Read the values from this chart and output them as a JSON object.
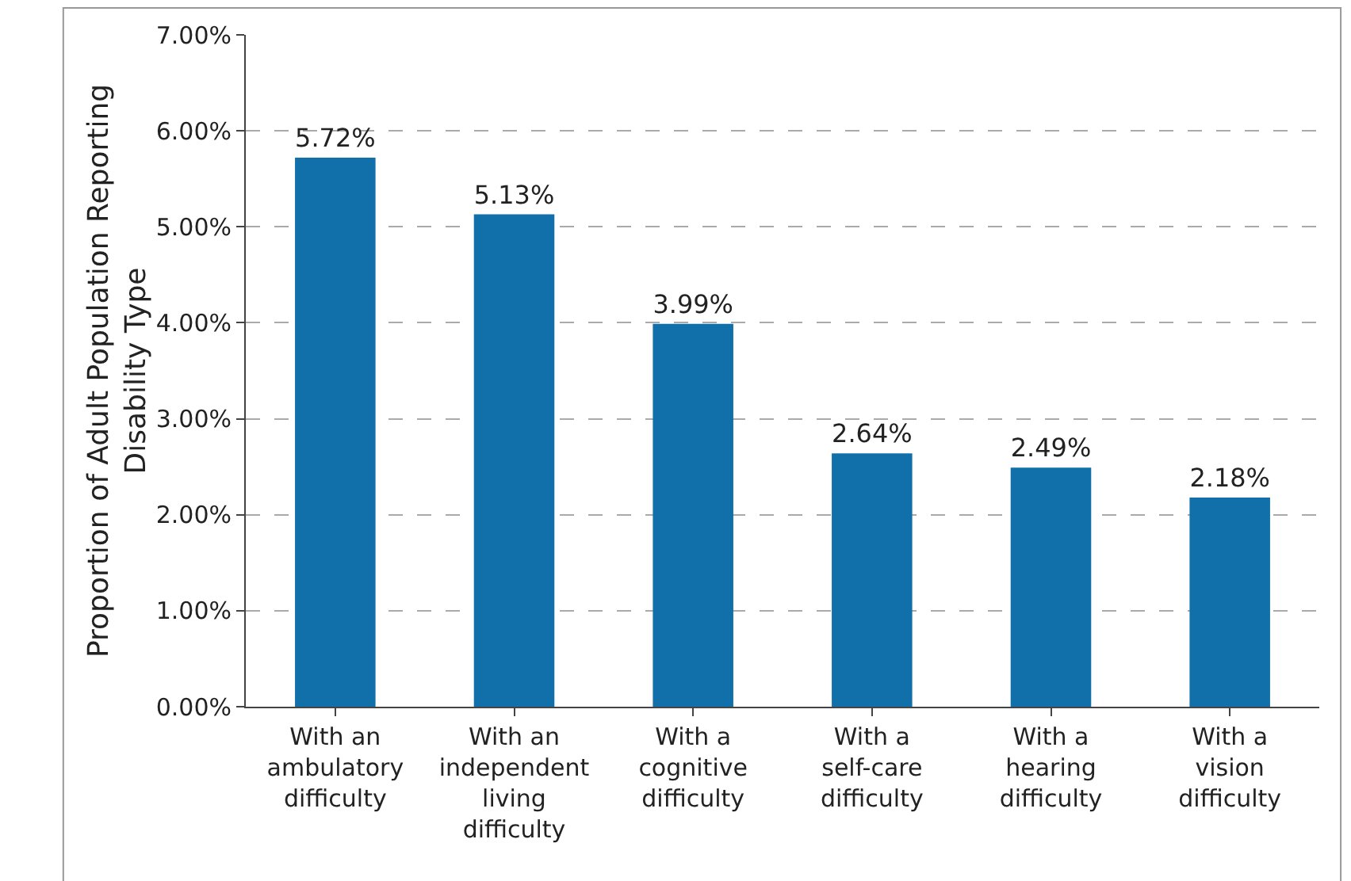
{
  "chart_data": {
    "type": "bar",
    "ylabel": "Proportion of Adult Population Reporting Disability Type",
    "categories": [
      "With an ambulatory difficulty",
      "With an independent living difficulty",
      "With a cognitive difficulty",
      "With a self-care difficulty",
      "With a hearing difficulty",
      "With a vision difficulty"
    ],
    "values": [
      5.72,
      5.13,
      3.99,
      2.64,
      2.49,
      2.18
    ],
    "value_labels": [
      "5.72%",
      "5.13%",
      "3.99%",
      "2.64%",
      "2.49%",
      "2.18%"
    ],
    "color": "#1170aa",
    "ylim": [
      0,
      7
    ],
    "yticks": [
      {
        "value": 0,
        "label": "0.00%"
      },
      {
        "value": 1,
        "label": "1.00%"
      },
      {
        "value": 2,
        "label": "2.00%"
      },
      {
        "value": 3,
        "label": "3.00%"
      },
      {
        "value": 4,
        "label": "4.00%"
      },
      {
        "value": 5,
        "label": "5.00%"
      },
      {
        "value": 6,
        "label": "6.00%"
      },
      {
        "value": 7,
        "label": "7.00%"
      }
    ],
    "grid": "y",
    "legend": false
  }
}
